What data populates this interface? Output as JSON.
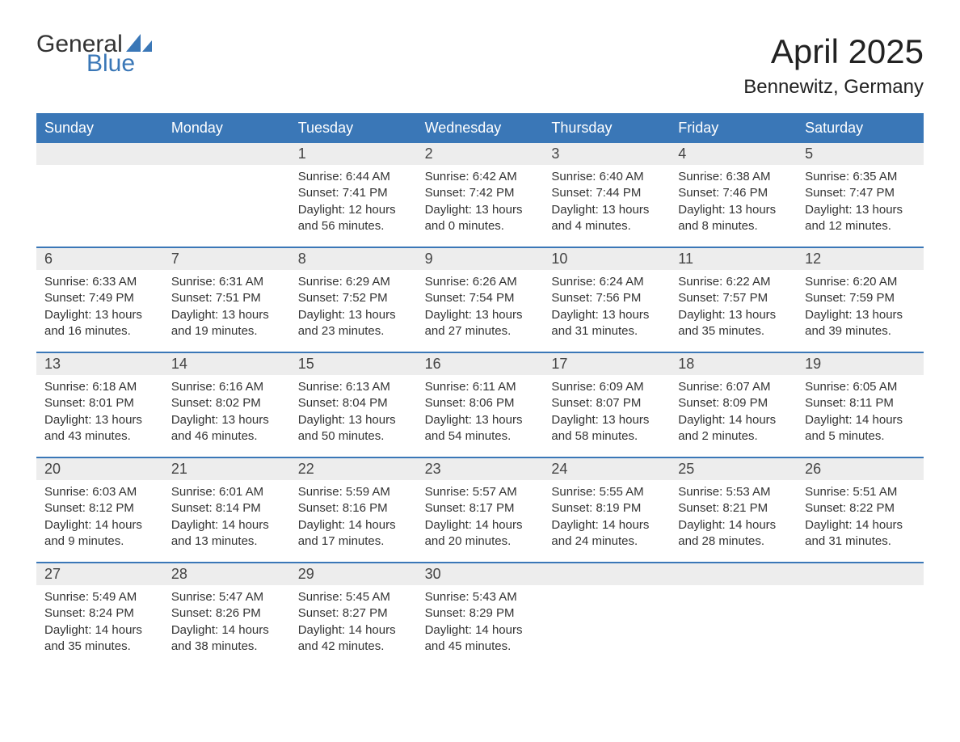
{
  "logo": {
    "text_general": "General",
    "text_blue": "Blue",
    "sail_color": "#3a77b7"
  },
  "header": {
    "month_title": "April 2025",
    "location": "Bennewitz, Germany"
  },
  "calendar": {
    "day_headers": [
      "Sunday",
      "Monday",
      "Tuesday",
      "Wednesday",
      "Thursday",
      "Friday",
      "Saturday"
    ],
    "colors": {
      "header_bg": "#3a77b7",
      "header_text": "#ffffff",
      "daynum_bg": "#ededed",
      "week_border": "#3a77b7",
      "text": "#333333"
    },
    "weeks": [
      [
        null,
        null,
        {
          "n": "1",
          "sunrise": "Sunrise: 6:44 AM",
          "sunset": "Sunset: 7:41 PM",
          "daylight1": "Daylight: 12 hours",
          "daylight2": "and 56 minutes."
        },
        {
          "n": "2",
          "sunrise": "Sunrise: 6:42 AM",
          "sunset": "Sunset: 7:42 PM",
          "daylight1": "Daylight: 13 hours",
          "daylight2": "and 0 minutes."
        },
        {
          "n": "3",
          "sunrise": "Sunrise: 6:40 AM",
          "sunset": "Sunset: 7:44 PM",
          "daylight1": "Daylight: 13 hours",
          "daylight2": "and 4 minutes."
        },
        {
          "n": "4",
          "sunrise": "Sunrise: 6:38 AM",
          "sunset": "Sunset: 7:46 PM",
          "daylight1": "Daylight: 13 hours",
          "daylight2": "and 8 minutes."
        },
        {
          "n": "5",
          "sunrise": "Sunrise: 6:35 AM",
          "sunset": "Sunset: 7:47 PM",
          "daylight1": "Daylight: 13 hours",
          "daylight2": "and 12 minutes."
        }
      ],
      [
        {
          "n": "6",
          "sunrise": "Sunrise: 6:33 AM",
          "sunset": "Sunset: 7:49 PM",
          "daylight1": "Daylight: 13 hours",
          "daylight2": "and 16 minutes."
        },
        {
          "n": "7",
          "sunrise": "Sunrise: 6:31 AM",
          "sunset": "Sunset: 7:51 PM",
          "daylight1": "Daylight: 13 hours",
          "daylight2": "and 19 minutes."
        },
        {
          "n": "8",
          "sunrise": "Sunrise: 6:29 AM",
          "sunset": "Sunset: 7:52 PM",
          "daylight1": "Daylight: 13 hours",
          "daylight2": "and 23 minutes."
        },
        {
          "n": "9",
          "sunrise": "Sunrise: 6:26 AM",
          "sunset": "Sunset: 7:54 PM",
          "daylight1": "Daylight: 13 hours",
          "daylight2": "and 27 minutes."
        },
        {
          "n": "10",
          "sunrise": "Sunrise: 6:24 AM",
          "sunset": "Sunset: 7:56 PM",
          "daylight1": "Daylight: 13 hours",
          "daylight2": "and 31 minutes."
        },
        {
          "n": "11",
          "sunrise": "Sunrise: 6:22 AM",
          "sunset": "Sunset: 7:57 PM",
          "daylight1": "Daylight: 13 hours",
          "daylight2": "and 35 minutes."
        },
        {
          "n": "12",
          "sunrise": "Sunrise: 6:20 AM",
          "sunset": "Sunset: 7:59 PM",
          "daylight1": "Daylight: 13 hours",
          "daylight2": "and 39 minutes."
        }
      ],
      [
        {
          "n": "13",
          "sunrise": "Sunrise: 6:18 AM",
          "sunset": "Sunset: 8:01 PM",
          "daylight1": "Daylight: 13 hours",
          "daylight2": "and 43 minutes."
        },
        {
          "n": "14",
          "sunrise": "Sunrise: 6:16 AM",
          "sunset": "Sunset: 8:02 PM",
          "daylight1": "Daylight: 13 hours",
          "daylight2": "and 46 minutes."
        },
        {
          "n": "15",
          "sunrise": "Sunrise: 6:13 AM",
          "sunset": "Sunset: 8:04 PM",
          "daylight1": "Daylight: 13 hours",
          "daylight2": "and 50 minutes."
        },
        {
          "n": "16",
          "sunrise": "Sunrise: 6:11 AM",
          "sunset": "Sunset: 8:06 PM",
          "daylight1": "Daylight: 13 hours",
          "daylight2": "and 54 minutes."
        },
        {
          "n": "17",
          "sunrise": "Sunrise: 6:09 AM",
          "sunset": "Sunset: 8:07 PM",
          "daylight1": "Daylight: 13 hours",
          "daylight2": "and 58 minutes."
        },
        {
          "n": "18",
          "sunrise": "Sunrise: 6:07 AM",
          "sunset": "Sunset: 8:09 PM",
          "daylight1": "Daylight: 14 hours",
          "daylight2": "and 2 minutes."
        },
        {
          "n": "19",
          "sunrise": "Sunrise: 6:05 AM",
          "sunset": "Sunset: 8:11 PM",
          "daylight1": "Daylight: 14 hours",
          "daylight2": "and 5 minutes."
        }
      ],
      [
        {
          "n": "20",
          "sunrise": "Sunrise: 6:03 AM",
          "sunset": "Sunset: 8:12 PM",
          "daylight1": "Daylight: 14 hours",
          "daylight2": "and 9 minutes."
        },
        {
          "n": "21",
          "sunrise": "Sunrise: 6:01 AM",
          "sunset": "Sunset: 8:14 PM",
          "daylight1": "Daylight: 14 hours",
          "daylight2": "and 13 minutes."
        },
        {
          "n": "22",
          "sunrise": "Sunrise: 5:59 AM",
          "sunset": "Sunset: 8:16 PM",
          "daylight1": "Daylight: 14 hours",
          "daylight2": "and 17 minutes."
        },
        {
          "n": "23",
          "sunrise": "Sunrise: 5:57 AM",
          "sunset": "Sunset: 8:17 PM",
          "daylight1": "Daylight: 14 hours",
          "daylight2": "and 20 minutes."
        },
        {
          "n": "24",
          "sunrise": "Sunrise: 5:55 AM",
          "sunset": "Sunset: 8:19 PM",
          "daylight1": "Daylight: 14 hours",
          "daylight2": "and 24 minutes."
        },
        {
          "n": "25",
          "sunrise": "Sunrise: 5:53 AM",
          "sunset": "Sunset: 8:21 PM",
          "daylight1": "Daylight: 14 hours",
          "daylight2": "and 28 minutes."
        },
        {
          "n": "26",
          "sunrise": "Sunrise: 5:51 AM",
          "sunset": "Sunset: 8:22 PM",
          "daylight1": "Daylight: 14 hours",
          "daylight2": "and 31 minutes."
        }
      ],
      [
        {
          "n": "27",
          "sunrise": "Sunrise: 5:49 AM",
          "sunset": "Sunset: 8:24 PM",
          "daylight1": "Daylight: 14 hours",
          "daylight2": "and 35 minutes."
        },
        {
          "n": "28",
          "sunrise": "Sunrise: 5:47 AM",
          "sunset": "Sunset: 8:26 PM",
          "daylight1": "Daylight: 14 hours",
          "daylight2": "and 38 minutes."
        },
        {
          "n": "29",
          "sunrise": "Sunrise: 5:45 AM",
          "sunset": "Sunset: 8:27 PM",
          "daylight1": "Daylight: 14 hours",
          "daylight2": "and 42 minutes."
        },
        {
          "n": "30",
          "sunrise": "Sunrise: 5:43 AM",
          "sunset": "Sunset: 8:29 PM",
          "daylight1": "Daylight: 14 hours",
          "daylight2": "and 45 minutes."
        },
        null,
        null,
        null
      ]
    ]
  }
}
